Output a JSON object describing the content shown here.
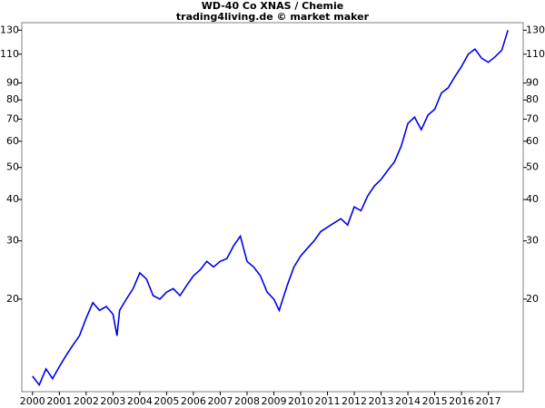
{
  "chart_data": {
    "type": "line",
    "title": "WD-40 Co XNAS / Chemie",
    "subtitle": "trading4living.de © market maker",
    "log_scale": true,
    "color": "#0000ee",
    "x": [
      2000.0,
      2000.25,
      2000.5,
      2000.75,
      2001.0,
      2001.25,
      2001.5,
      2001.75,
      2002.0,
      2002.25,
      2002.5,
      2002.75,
      2003.0,
      2003.15,
      2003.25,
      2003.5,
      2003.75,
      2004.0,
      2004.25,
      2004.5,
      2004.75,
      2005.0,
      2005.25,
      2005.5,
      2005.75,
      2006.0,
      2006.25,
      2006.5,
      2006.75,
      2007.0,
      2007.25,
      2007.5,
      2007.75,
      2008.0,
      2008.25,
      2008.5,
      2008.75,
      2009.0,
      2009.2,
      2009.5,
      2009.75,
      2010.0,
      2010.25,
      2010.5,
      2010.75,
      2011.0,
      2011.25,
      2011.5,
      2011.75,
      2012.0,
      2012.25,
      2012.5,
      2012.75,
      2013.0,
      2013.25,
      2013.5,
      2013.75,
      2014.0,
      2014.25,
      2014.5,
      2014.75,
      2015.0,
      2015.25,
      2015.5,
      2015.75,
      2016.0,
      2016.25,
      2016.5,
      2016.75,
      2017.0,
      2017.25,
      2017.5,
      2017.73
    ],
    "values": [
      11.7,
      11.0,
      12.3,
      11.5,
      12.5,
      13.5,
      14.5,
      15.5,
      17.5,
      19.5,
      18.5,
      19,
      18,
      15.5,
      18.5,
      20,
      21.5,
      24,
      23,
      20.5,
      20,
      21,
      21.5,
      20.5,
      22,
      23.5,
      24.5,
      26,
      25,
      26,
      26.5,
      29,
      31,
      26,
      25,
      23.5,
      21,
      20,
      18.5,
      22,
      25,
      27,
      28.5,
      30,
      32,
      33,
      34,
      35,
      33.5,
      38,
      37,
      41,
      44,
      46,
      49,
      52,
      58,
      68,
      71,
      65,
      72,
      75,
      84,
      87,
      94,
      101,
      110,
      114,
      107,
      104,
      108,
      113,
      130
    ],
    "xlim": [
      1999.6,
      2018.3
    ],
    "xticks": [
      2000,
      2001,
      2002,
      2003,
      2004,
      2005,
      2006,
      2007,
      2008,
      2009,
      2010,
      2011,
      2012,
      2013,
      2014,
      2015,
      2016,
      2017
    ],
    "ylim": [
      10.5,
      137
    ],
    "yticks": [
      20,
      30,
      40,
      50,
      60,
      70,
      80,
      90,
      110,
      130
    ]
  }
}
